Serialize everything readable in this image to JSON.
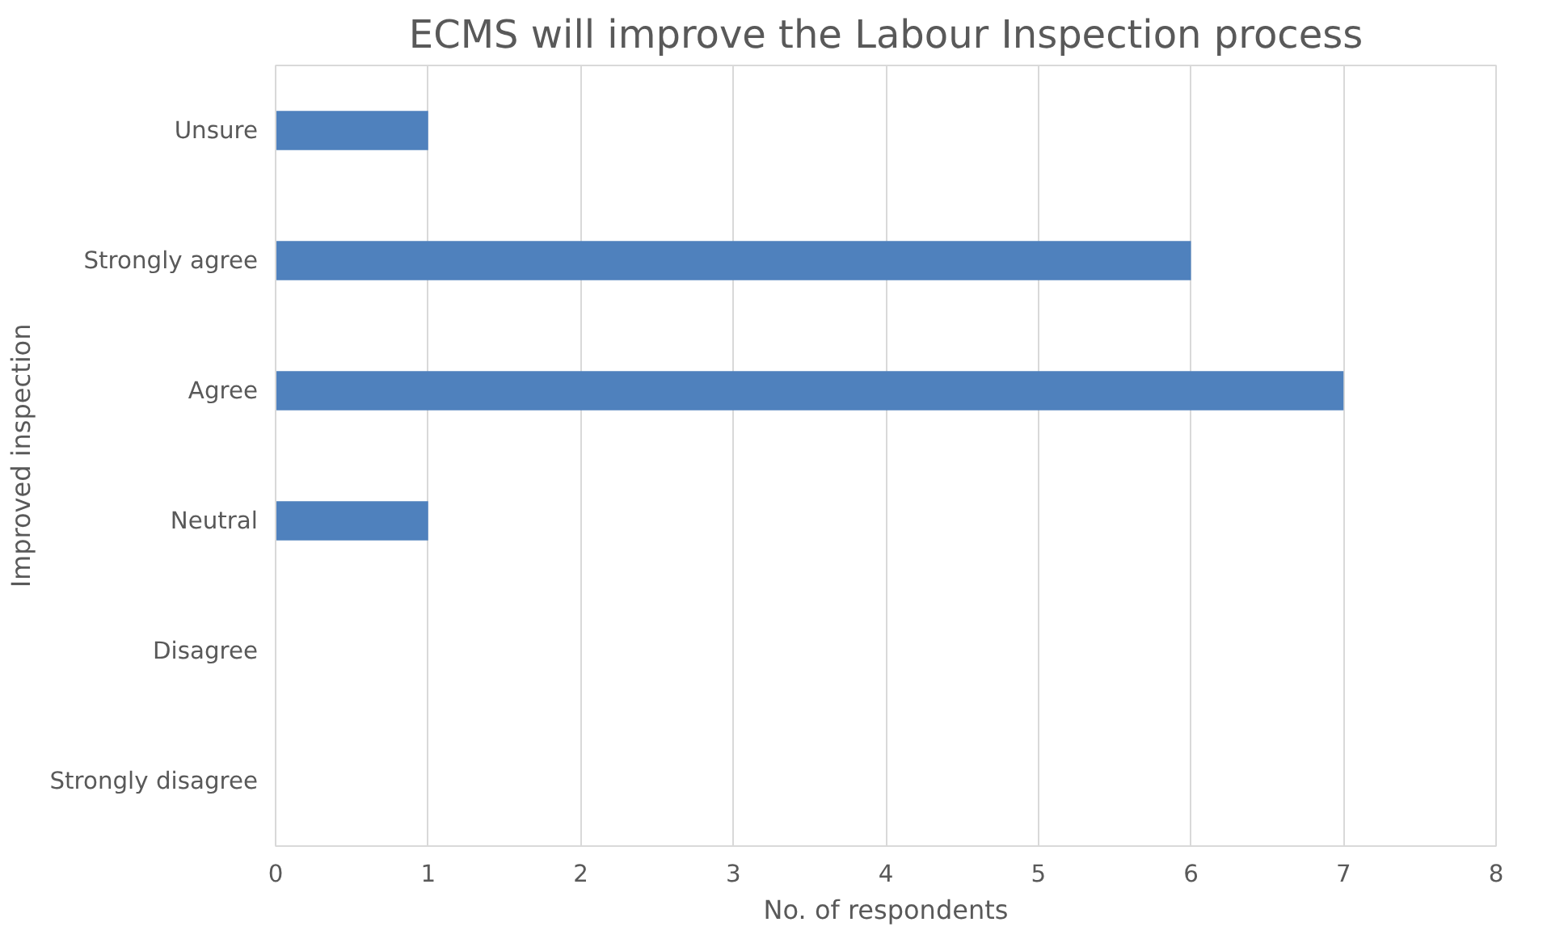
{
  "chart_data": {
    "type": "bar",
    "orientation": "horizontal",
    "title": "ECMS will improve the Labour Inspection process",
    "xlabel": "No. of respondents",
    "ylabel": "Improved inspection",
    "categories": [
      "Unsure",
      "Strongly agree",
      "Agree",
      "Neutral",
      "Disagree",
      "Strongly disagree"
    ],
    "values": [
      1,
      6,
      7,
      1,
      0,
      0
    ],
    "color": "#4f81bd",
    "xlim": [
      0,
      8
    ],
    "xticks": [
      0,
      1,
      2,
      3,
      4,
      5,
      6,
      7,
      8
    ],
    "grid": "x"
  }
}
